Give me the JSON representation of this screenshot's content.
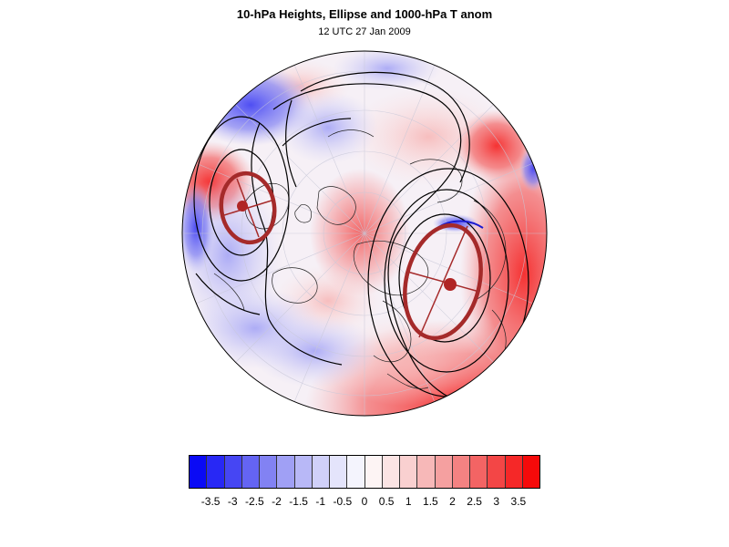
{
  "title": "10-hPa Heights, Ellipse and 1000-hPa T anom",
  "subtitle": "12 UTC 27 Jan 2009",
  "colorbar": {
    "colors": [
      "#0a0af5",
      "#2828f5",
      "#4646f3",
      "#6464f3",
      "#8282f3",
      "#a0a0f5",
      "#b8b8f7",
      "#d0d0f9",
      "#e4e4fb",
      "#f4f4fd",
      "#fdf4f4",
      "#fbe4e4",
      "#f9d0d0",
      "#f7b8b8",
      "#f5a0a0",
      "#f38282",
      "#f36464",
      "#f34646",
      "#f52828",
      "#f50a0a"
    ],
    "labels": [
      "-3.5",
      "-3",
      "-2.5",
      "-2",
      "-1.5",
      "-1",
      "-0.5",
      "0",
      "0.5",
      "1",
      "1.5",
      "2",
      "2.5",
      "3",
      "3.5"
    ],
    "range": [
      -4.0,
      4.0
    ]
  },
  "map": {
    "projection": "orthographic-polar",
    "ellipse_color": "#a52a2a",
    "contour_color": "#000000",
    "neg_color": "#3a3af0",
    "pos_color": "#f53a3a"
  }
}
